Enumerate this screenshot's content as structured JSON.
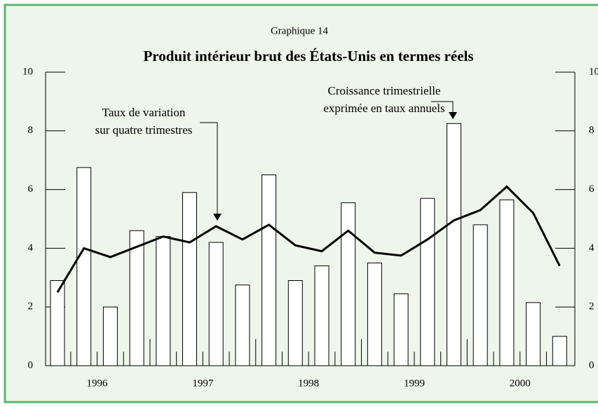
{
  "chart_data": {
    "type": "bar_line",
    "header": "Graphique 14",
    "title": "Produit intérieur brut des États-Unis en termes réels",
    "categories": [
      null,
      null,
      null,
      null,
      null,
      null,
      null,
      null,
      null,
      null,
      null,
      null,
      null,
      null,
      null,
      null,
      null,
      null,
      null,
      null
    ],
    "year_labels": [
      "1996",
      "1997",
      "1998",
      "1999",
      "2000"
    ],
    "series": [
      {
        "type": "bar",
        "color": "#ffffff",
        "values": [
          2.9,
          6.75,
          2.0,
          4.6,
          4.4,
          5.9,
          4.2,
          2.75,
          6.5,
          2.9,
          3.4,
          5.55,
          3.5,
          2.45,
          5.7,
          8.25,
          4.8,
          5.65,
          2.15,
          1.0
        ]
      },
      {
        "type": "line",
        "color": "#000000",
        "values": [
          2.5,
          4.0,
          3.7,
          4.05,
          4.4,
          4.2,
          4.75,
          4.3,
          4.8,
          4.1,
          3.9,
          4.6,
          3.85,
          3.75,
          4.3,
          4.95,
          5.3,
          6.1,
          5.2,
          3.4
        ]
      }
    ],
    "annotations": [
      {
        "lines": [
          "Taux de variation",
          "sur quatre trimestres"
        ]
      },
      {
        "lines": [
          "Croissance trimestrielle",
          "exprimée en taux annuels"
        ]
      }
    ],
    "ylim": [
      0,
      10
    ],
    "yticks": [
      0,
      2,
      4,
      6,
      8,
      10
    ]
  }
}
